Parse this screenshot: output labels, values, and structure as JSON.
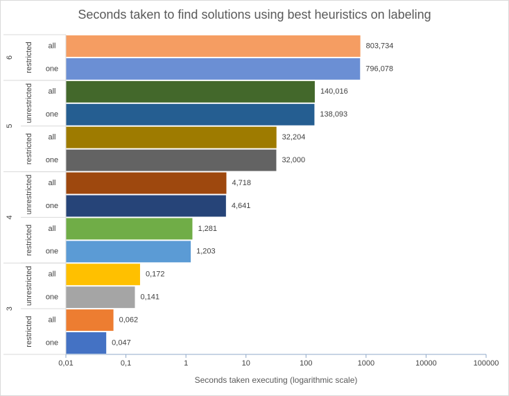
{
  "chart_data": {
    "type": "bar",
    "orientation": "horizontal",
    "title": "Seconds taken to find solutions using best heuristics on labeling",
    "xlabel": "Seconds taken executing (logarithmic scale)",
    "log_scale": true,
    "xlim": [
      0.01,
      100000
    ],
    "xticks": [
      {
        "value": 0.01,
        "label": "0,01"
      },
      {
        "value": 0.1,
        "label": "0,1"
      },
      1,
      10,
      100,
      1000,
      10000,
      100000
    ],
    "groups": [
      {
        "name": "6",
        "subgroups": [
          {
            "name": "restricted",
            "categories": [
              "all",
              "one"
            ],
            "values": [
              803.734,
              796.078
            ],
            "value_labels": [
              "803,734",
              "796,078"
            ],
            "colors": [
              "#f59d62",
              "#6b8fd4"
            ]
          }
        ]
      },
      {
        "name": "5",
        "subgroups": [
          {
            "name": "unrestricted",
            "categories": [
              "all",
              "one"
            ],
            "values": [
              140.016,
              138.093
            ],
            "value_labels": [
              "140,016",
              "138,093"
            ],
            "colors": [
              "#43682b",
              "#255e91"
            ]
          },
          {
            "name": "restricted",
            "categories": [
              "all",
              "one"
            ],
            "values": [
              32.204,
              32.0
            ],
            "value_labels": [
              "32,204",
              "32,000"
            ],
            "colors": [
              "#9e7b00",
              "#636363"
            ]
          }
        ]
      },
      {
        "name": "4",
        "subgroups": [
          {
            "name": "unrestricted",
            "categories": [
              "all",
              "one"
            ],
            "values": [
              4.718,
              4.641
            ],
            "value_labels": [
              "4,718",
              "4,641"
            ],
            "colors": [
              "#9e480e",
              "#264478"
            ]
          },
          {
            "name": "restricted",
            "categories": [
              "all",
              "one"
            ],
            "values": [
              1.281,
              1.203
            ],
            "value_labels": [
              "1,281",
              "1,203"
            ],
            "colors": [
              "#70ad47",
              "#5b9bd5"
            ]
          }
        ]
      },
      {
        "name": "3",
        "subgroups": [
          {
            "name": "unrestricted",
            "categories": [
              "all",
              "one"
            ],
            "values": [
              0.172,
              0.141
            ],
            "value_labels": [
              "0,172",
              "0,141"
            ],
            "colors": [
              "#ffc000",
              "#a5a5a5"
            ]
          },
          {
            "name": "restricted",
            "categories": [
              "all",
              "one"
            ],
            "values": [
              0.062,
              0.047
            ],
            "value_labels": [
              "0,062",
              "0,047"
            ],
            "colors": [
              "#ed7d31",
              "#4472c4"
            ]
          }
        ]
      }
    ]
  }
}
